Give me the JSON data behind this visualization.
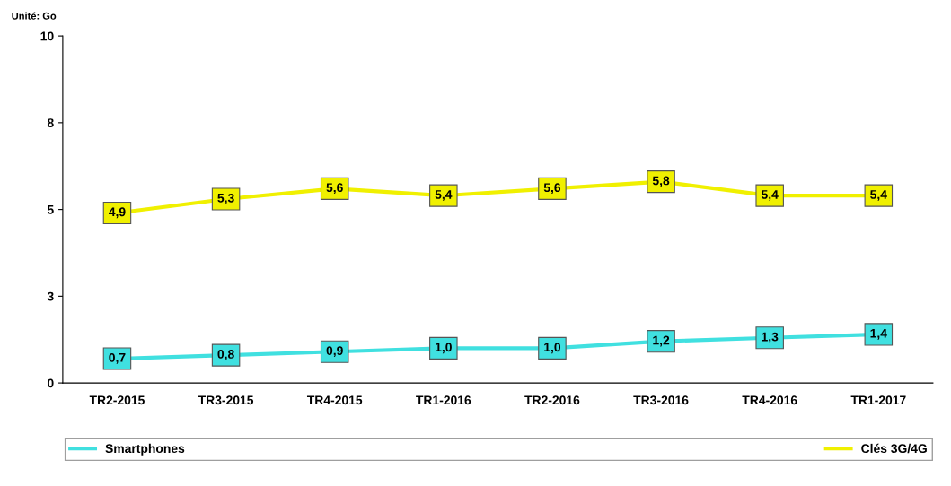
{
  "chart_data": {
    "type": "line",
    "annotations": [
      "Unité: Go"
    ],
    "categories": [
      "TR2-2015",
      "TR3-2015",
      "TR4-2015",
      "TR1-2016",
      "TR2-2016",
      "TR3-2016",
      "TR4-2016",
      "TR1-2017"
    ],
    "series": [
      {
        "name": "Smartphones",
        "color": "#40e0e0",
        "values": [
          0.7,
          0.8,
          0.9,
          1.0,
          1.0,
          1.2,
          1.3,
          1.4
        ],
        "value_labels": [
          "0,7",
          "0,8",
          "0,9",
          "1,0",
          "1,0",
          "1,2",
          "1,3",
          "1,4"
        ]
      },
      {
        "name": "Clés 3G/4G",
        "color": "#f0f000",
        "values": [
          4.9,
          5.3,
          5.6,
          5.4,
          5.6,
          5.8,
          5.4,
          5.4
        ],
        "value_labels": [
          "4,9",
          "5,3",
          "5,6",
          "5,4",
          "5,6",
          "5,8",
          "5,4",
          "5,4"
        ]
      }
    ],
    "ylim": [
      0,
      10
    ],
    "yticks": [
      0,
      {
        "value": 2.5,
        "label": "3"
      },
      5,
      {
        "value": 7.5,
        "label": "8"
      },
      10
    ],
    "grid": false,
    "legend": "bottom",
    "marker": "square",
    "line_style": "solid"
  }
}
